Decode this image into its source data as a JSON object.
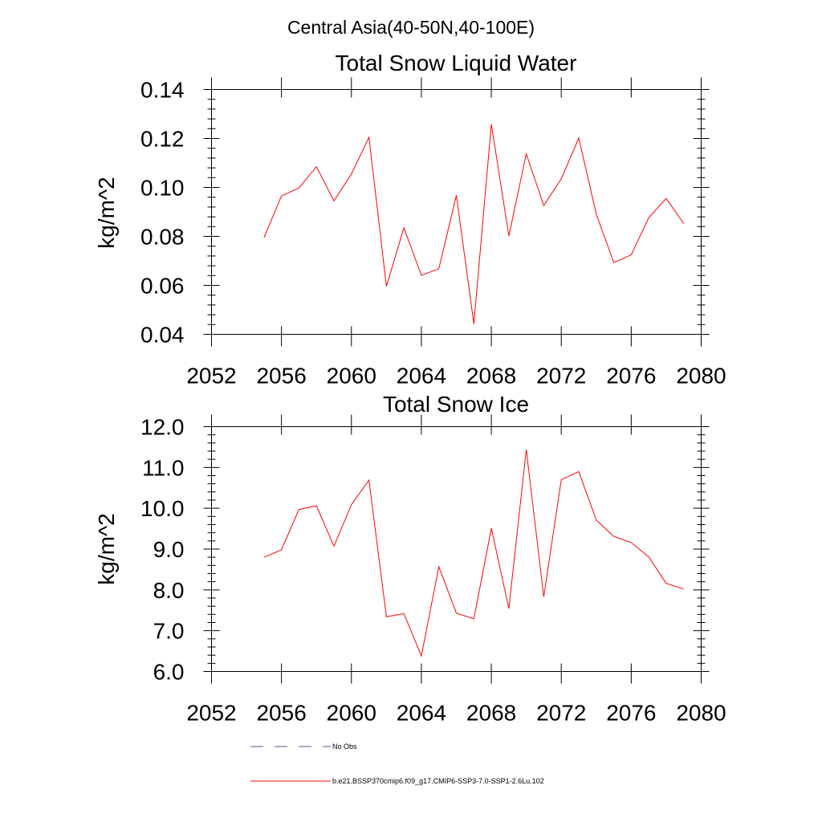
{
  "suptitle": "Central Asia(40-50N,40-100E)",
  "chart_data": [
    {
      "type": "line",
      "title": "Total Snow Liquid Water",
      "xlabel": "",
      "ylabel": "kg/m^2",
      "xlim": [
        2052,
        2080
      ],
      "ylim": [
        0.04,
        0.14
      ],
      "x_ticks": [
        "2052",
        "2056",
        "2060",
        "2064",
        "2068",
        "2072",
        "2076",
        "2080"
      ],
      "y_ticks": [
        "0.04",
        "0.06",
        "0.08",
        "0.10",
        "0.12",
        "0.14"
      ],
      "grid": false,
      "series": [
        {
          "name": "b.e21.BSSP370cmip6.f09_g17.CMIP6-SSP3-7.0-SSP1-2.6Lu.102",
          "color": "#ff0000",
          "x": [
            2055,
            2056,
            2057,
            2058,
            2059,
            2060,
            2061,
            2062,
            2063,
            2064,
            2065,
            2066,
            2067,
            2068,
            2069,
            2070,
            2071,
            2072,
            2073,
            2074,
            2075,
            2076,
            2077,
            2078,
            2079
          ],
          "y": [
            0.0795,
            0.0965,
            0.0998,
            0.1085,
            0.0945,
            0.1055,
            0.1205,
            0.0596,
            0.0835,
            0.0641,
            0.0668,
            0.0968,
            0.0443,
            0.1258,
            0.0802,
            0.1137,
            0.0926,
            0.1035,
            0.1202,
            0.0891,
            0.0693,
            0.0725,
            0.0876,
            0.0955,
            0.0852
          ]
        }
      ]
    },
    {
      "type": "line",
      "title": "Total Snow Ice",
      "xlabel": "",
      "ylabel": "kg/m^2",
      "xlim": [
        2052,
        2080
      ],
      "ylim": [
        6.0,
        12.0
      ],
      "x_ticks": [
        "2052",
        "2056",
        "2060",
        "2064",
        "2068",
        "2072",
        "2076",
        "2080"
      ],
      "y_ticks": [
        "6.0",
        "7.0",
        "8.0",
        "9.0",
        "10.0",
        "11.0",
        "12.0"
      ],
      "grid": false,
      "series": [
        {
          "name": "b.e21.BSSP370cmip6.f09_g17.CMIP6-SSP3-7.0-SSP1-2.6Lu.102",
          "color": "#ff0000",
          "x": [
            2055,
            2056,
            2057,
            2058,
            2059,
            2060,
            2061,
            2062,
            2063,
            2064,
            2065,
            2066,
            2067,
            2068,
            2069,
            2070,
            2071,
            2072,
            2073,
            2074,
            2075,
            2076,
            2077,
            2078,
            2079
          ],
          "y": [
            8.8,
            8.98,
            9.97,
            10.06,
            9.07,
            10.09,
            10.69,
            7.34,
            7.42,
            6.38,
            8.57,
            7.43,
            7.29,
            9.51,
            7.54,
            11.44,
            7.83,
            10.7,
            10.9,
            9.71,
            9.31,
            9.16,
            8.81,
            8.16,
            8.02
          ]
        }
      ]
    }
  ],
  "legend": {
    "placement": "bottom",
    "entries": [
      {
        "label": "No Obs",
        "color": "#4a5a9a",
        "style": "dashed"
      },
      {
        "label": "b.e21.BSSP370cmip6.f09_g17.CMIP6-SSP3-7.0-SSP1-2.6Lu.102",
        "color": "#ff0000",
        "style": "solid"
      }
    ]
  }
}
